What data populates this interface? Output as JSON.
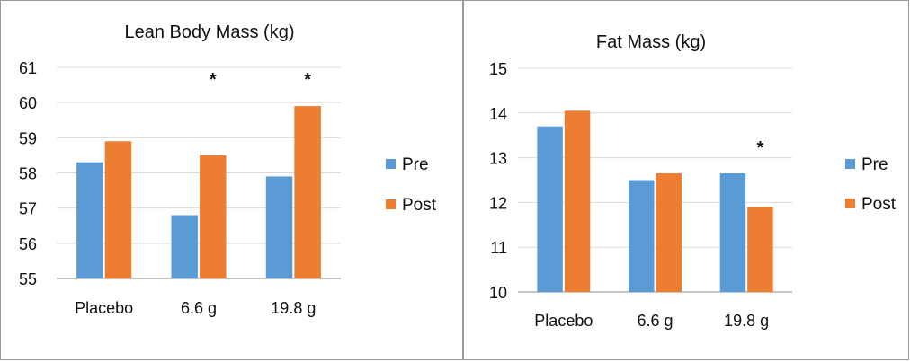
{
  "chart_data": [
    {
      "type": "bar",
      "title": "Lean Body Mass (kg)",
      "categories": [
        "Placebo",
        "6.6 g",
        "19.8 g"
      ],
      "series": [
        {
          "name": "Pre",
          "values": [
            58.3,
            56.8,
            57.9
          ],
          "color": "#5b9bd5"
        },
        {
          "name": "Post",
          "values": [
            58.9,
            58.5,
            59.9
          ],
          "color": "#ed7d31"
        }
      ],
      "ylim": [
        55,
        61
      ],
      "yticks": [
        55,
        56,
        57,
        58,
        59,
        60,
        61
      ],
      "grid": true,
      "legend": "right",
      "annotations": [
        {
          "category": "6.6 g",
          "text": "*"
        },
        {
          "category": "19.8 g",
          "text": "*"
        }
      ]
    },
    {
      "type": "bar",
      "title": "Fat Mass (kg)",
      "categories": [
        "Placebo",
        "6.6 g",
        "19.8 g"
      ],
      "series": [
        {
          "name": "Pre",
          "values": [
            13.7,
            12.5,
            12.65
          ],
          "color": "#5b9bd5"
        },
        {
          "name": "Post",
          "values": [
            14.05,
            12.65,
            11.9
          ],
          "color": "#ed7d31"
        }
      ],
      "ylim": [
        10,
        15
      ],
      "yticks": [
        10,
        11,
        12,
        13,
        14,
        15
      ],
      "grid": true,
      "legend": "right",
      "annotations": [
        {
          "category": "19.8 g",
          "text": "*"
        }
      ]
    }
  ]
}
